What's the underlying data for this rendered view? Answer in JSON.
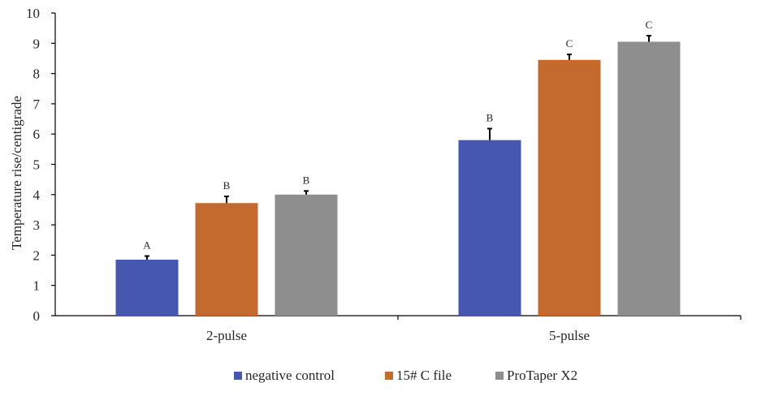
{
  "chart_data": {
    "type": "bar",
    "title": "",
    "xlabel": "",
    "ylabel": "Temperature rise/centigrade",
    "ylim": [
      0,
      10
    ],
    "yticks": [
      0,
      1,
      2,
      3,
      4,
      5,
      6,
      7,
      8,
      9,
      10
    ],
    "categories": [
      "2-pulse",
      "5-pulse"
    ],
    "grid": false,
    "legend_position": "bottom",
    "error_bars": true,
    "series": [
      {
        "name": "negative control",
        "color": "#4657B2",
        "values": [
          1.85,
          5.8
        ],
        "errors": [
          0.12,
          0.38
        ],
        "significance": [
          "A",
          "B"
        ]
      },
      {
        "name": "15# C file",
        "color": "#C46A2E",
        "values": [
          3.72,
          8.45
        ],
        "errors": [
          0.22,
          0.18
        ],
        "significance": [
          "B",
          "C"
        ]
      },
      {
        "name": "ProTaper X2",
        "color": "#8E8E8E",
        "values": [
          4.0,
          9.05
        ],
        "errors": [
          0.12,
          0.2
        ],
        "significance": [
          "B",
          "C"
        ]
      }
    ]
  }
}
